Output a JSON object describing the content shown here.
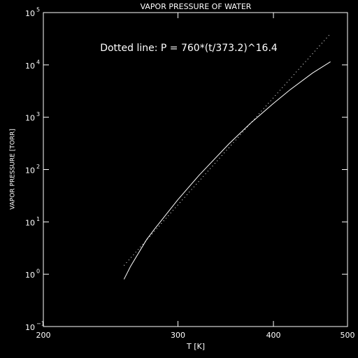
{
  "chart_data": {
    "type": "line",
    "title": "VAPOR PRESSURE OF WATER",
    "x_label": "T [K]",
    "y_label": "VAPOR PRESSURE [TORR]",
    "annotation": "Dotted line:  P = 760*(t/373.2)^16.4",
    "xlog": true,
    "ylog": true,
    "xlim": [
      200,
      500
    ],
    "ylim": [
      0.1,
      100000
    ],
    "xticks": [
      200,
      300,
      400,
      500
    ],
    "yticks": [
      {
        "value": 0.1,
        "label": "10",
        "exponent": "−1"
      },
      {
        "value": 1,
        "label": "10",
        "exponent": "0"
      },
      {
        "value": 10,
        "label": "10",
        "exponent": "1"
      },
      {
        "value": 100,
        "label": "10",
        "exponent": "2"
      },
      {
        "value": 1000,
        "label": "10",
        "exponent": "3"
      },
      {
        "value": 10000,
        "label": "10",
        "exponent": "4"
      },
      {
        "value": 100000,
        "label": "10",
        "exponent": "5"
      }
    ],
    "series": [
      {
        "style": "solid",
        "color": "#ffffff",
        "x": [
          255,
          260,
          273,
          280,
          300,
          320,
          350,
          373,
          400,
          420,
          450,
          475
        ],
        "values": [
          0.8,
          1.4,
          4.6,
          7.5,
          26.7,
          79,
          312,
          760,
          1840,
          3300,
          7000,
          11500
        ]
      },
      {
        "style": "dotted",
        "color": "#ffffff",
        "x": [
          255,
          275,
          300,
          325,
          350,
          373.2,
          400,
          425,
          450,
          475
        ],
        "values": [
          1.47,
          5.08,
          21.2,
          78.7,
          265,
          760,
          2369,
          6410,
          16340,
          39700
        ]
      }
    ]
  }
}
